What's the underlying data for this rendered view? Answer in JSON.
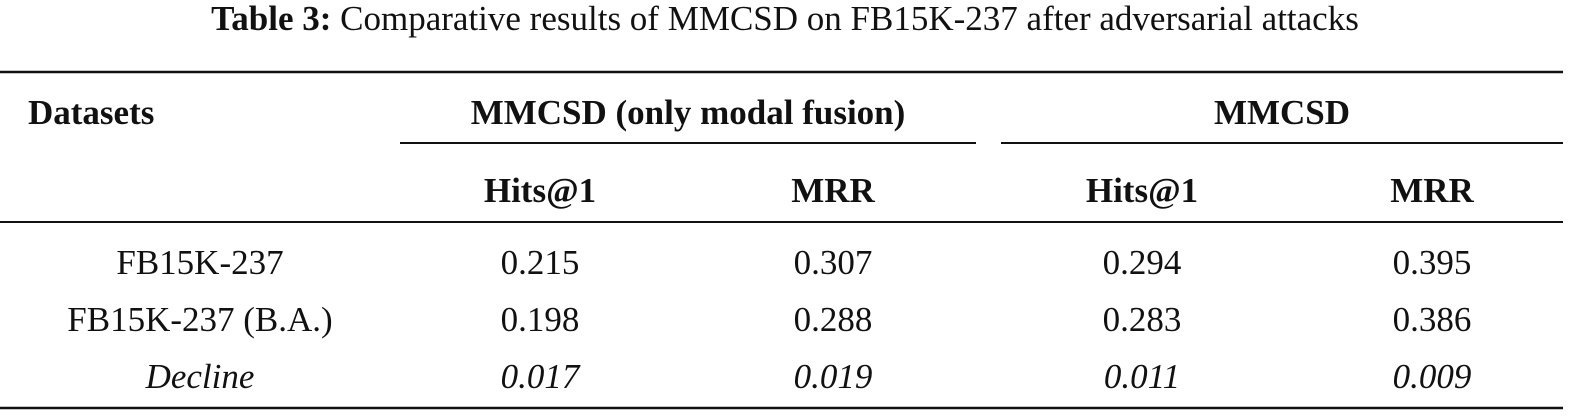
{
  "caption": {
    "label": "Table 3:",
    "text": "Comparative results of MMCSD on FB15K-237 after adversarial attacks"
  },
  "table": {
    "header": {
      "row_label": "Datasets",
      "groups": [
        "MMCSD (only modal fusion)",
        "MMCSD"
      ],
      "columns": [
        "Hits@1",
        "MRR",
        "Hits@1",
        "MRR"
      ]
    },
    "rows": [
      [
        "FB15K-237",
        "0.215",
        "0.307",
        "0.294",
        "0.395"
      ],
      [
        "FB15K-237 (B.A.)",
        "0.198",
        "0.288",
        "0.283",
        "0.386"
      ],
      [
        "Decline",
        "0.017",
        "0.019",
        "0.011",
        "0.009"
      ]
    ]
  }
}
